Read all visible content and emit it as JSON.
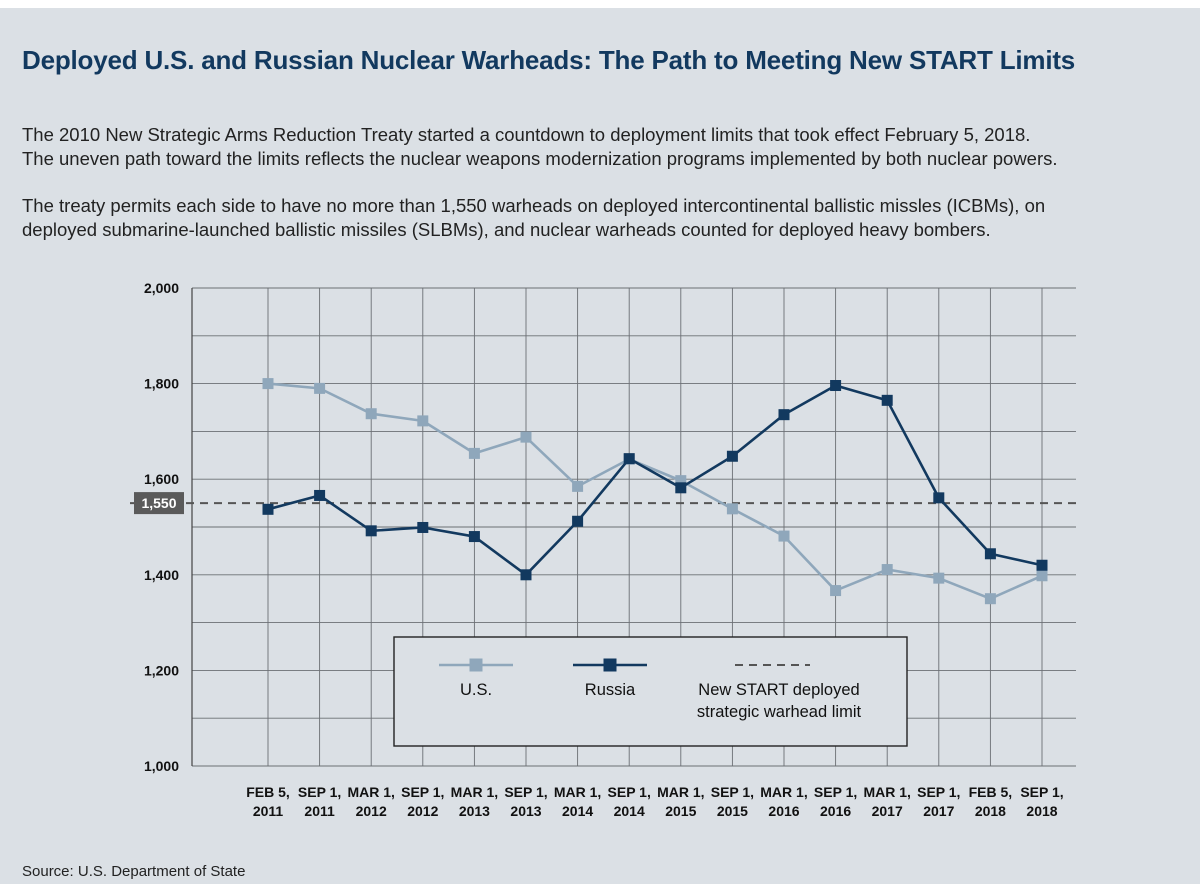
{
  "header": {
    "title": "Deployed U.S. and Russian Nuclear Warheads: The Path to Meeting New START Limits",
    "para1_line1": "The 2010 New Strategic Arms Reduction Treaty started a countdown to deployment limits that took effect February 5, 2018.",
    "para1_line2": "The uneven path toward the limits reflects the nuclear weapons modernization programs implemented by both nuclear powers.",
    "para2_line1": "The treaty permits each side to have no more than 1,550 warheads on deployed intercontinental ballistic missles (ICBMs), on",
    "para2_line2": "deployed submarine-launched ballistic missiles (SLBMs), and nuclear warheads counted for deployed heavy bombers."
  },
  "footer": {
    "source": "Source: U.S. Department of State"
  },
  "chart_data": {
    "type": "line",
    "title": "",
    "xlabel": "",
    "ylabel": "",
    "ylim": [
      1000,
      2000
    ],
    "y_ticks": [
      1000,
      1200,
      1400,
      1600,
      1800,
      2000
    ],
    "y_tick_labels": [
      "1,000",
      "1,200",
      "1,400",
      "1,600",
      "1,800",
      "2,000"
    ],
    "grid": true,
    "categories": [
      [
        "FEB 5,",
        "2011"
      ],
      [
        "SEP 1,",
        "2011"
      ],
      [
        "MAR 1,",
        "2012"
      ],
      [
        "SEP 1,",
        "2012"
      ],
      [
        "MAR 1,",
        "2013"
      ],
      [
        "SEP 1,",
        "2013"
      ],
      [
        "MAR 1,",
        "2014"
      ],
      [
        "SEP 1,",
        "2014"
      ],
      [
        "MAR 1,",
        "2015"
      ],
      [
        "SEP 1,",
        "2015"
      ],
      [
        "MAR 1,",
        "2016"
      ],
      [
        "SEP 1,",
        "2016"
      ],
      [
        "MAR 1,",
        "2017"
      ],
      [
        "SEP 1,",
        "2017"
      ],
      [
        "FEB 5,",
        "2018"
      ],
      [
        "SEP 1,",
        "2018"
      ]
    ],
    "series": [
      {
        "name": "U.S.",
        "color": "#8fa7bb",
        "values": [
          1800,
          1790,
          1737,
          1722,
          1654,
          1688,
          1585,
          1642,
          1597,
          1538,
          1481,
          1367,
          1411,
          1393,
          1350,
          1398
        ]
      },
      {
        "name": "Russia",
        "color": "#12395f",
        "values": [
          1537,
          1566,
          1492,
          1499,
          1480,
          1400,
          1512,
          1643,
          1582,
          1648,
          1735,
          1796,
          1765,
          1561,
          1444,
          1420
        ]
      }
    ],
    "reference_line": {
      "value": 1550,
      "label": "1,550",
      "legend": [
        "New START deployed",
        "strategic warhead limit"
      ],
      "color": "#555555"
    },
    "legend_placement": "bottom-center"
  }
}
